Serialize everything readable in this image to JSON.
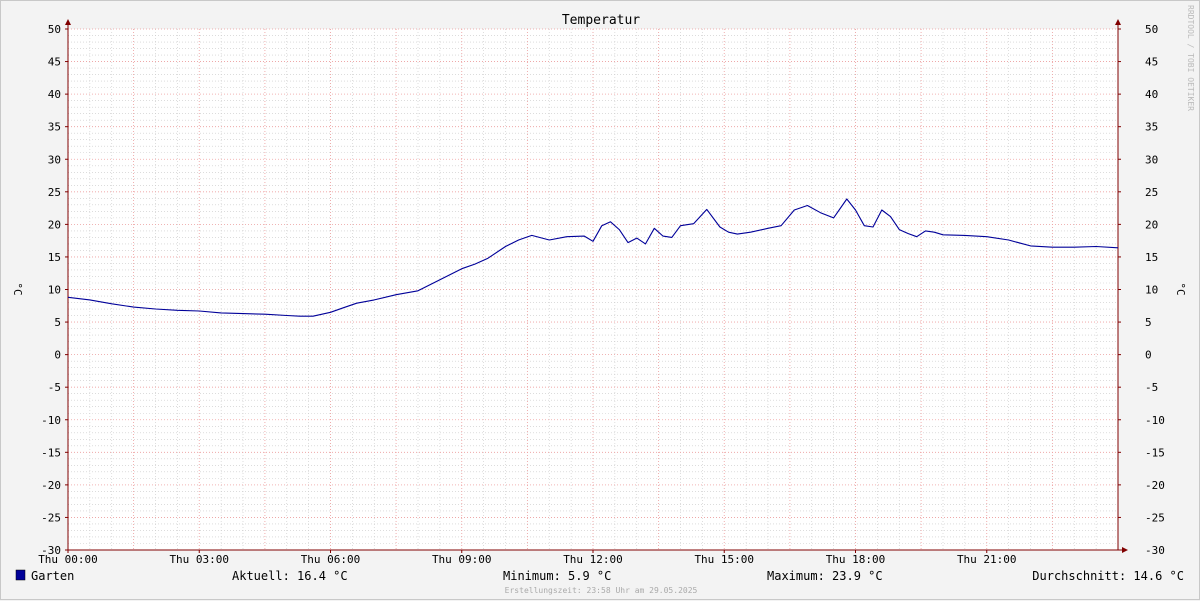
{
  "chart_data": {
    "type": "line",
    "title": "Temperatur",
    "ylabel": "°C",
    "ylim": [
      -30,
      50
    ],
    "yticks": [
      50,
      45,
      40,
      35,
      30,
      25,
      20,
      15,
      10,
      5,
      0,
      -5,
      -10,
      -15,
      -20,
      -25,
      -30
    ],
    "ytick_labels": [
      "50",
      "45",
      "40",
      "35",
      "30",
      "25",
      "20",
      "15",
      "10",
      "5",
      "0",
      "-5",
      "-10",
      "-15",
      "-20",
      "-25",
      "-30"
    ],
    "xlim": [
      0,
      24
    ],
    "xticks": [
      0,
      3,
      6,
      9,
      12,
      15,
      18,
      21
    ],
    "xtick_labels": [
      "Thu 00:00",
      "Thu 03:00",
      "Thu 06:00",
      "Thu 09:00",
      "Thu 12:00",
      "Thu 15:00",
      "Thu 18:00",
      "Thu 21:00"
    ],
    "grid": true,
    "legend_position": "bottom-left",
    "series": [
      {
        "name": "Garten",
        "color": "#000099",
        "x": [
          0,
          0.5,
          1,
          1.5,
          2,
          2.5,
          3,
          3.5,
          4,
          4.5,
          5,
          5.3,
          5.6,
          6,
          6.3,
          6.6,
          7,
          7.5,
          8,
          8.5,
          9,
          9.3,
          9.6,
          10,
          10.3,
          10.6,
          11,
          11.4,
          11.8,
          12.0,
          12.2,
          12.4,
          12.6,
          12.8,
          13.0,
          13.2,
          13.4,
          13.6,
          13.8,
          14.0,
          14.3,
          14.6,
          14.9,
          15.1,
          15.3,
          15.6,
          16.0,
          16.3,
          16.6,
          16.9,
          17.2,
          17.5,
          17.8,
          18.0,
          18.2,
          18.4,
          18.6,
          18.8,
          19.0,
          19.2,
          19.4,
          19.6,
          19.8,
          20.0,
          20.5,
          21.0,
          21.5,
          22.0,
          22.5,
          23.0,
          23.5,
          24.0
        ],
        "y": [
          8.8,
          8.4,
          7.8,
          7.3,
          7.0,
          6.8,
          6.7,
          6.4,
          6.3,
          6.2,
          6.0,
          5.9,
          5.9,
          6.5,
          7.2,
          7.9,
          8.4,
          9.2,
          9.8,
          11.5,
          13.2,
          13.9,
          14.8,
          16.6,
          17.6,
          18.3,
          17.6,
          18.1,
          18.2,
          17.4,
          19.8,
          20.4,
          19.2,
          17.2,
          17.9,
          17.0,
          19.4,
          18.2,
          18.0,
          19.8,
          20.1,
          22.3,
          19.6,
          18.8,
          18.5,
          18.8,
          19.4,
          19.8,
          22.2,
          22.9,
          21.8,
          21.0,
          23.9,
          22.2,
          19.8,
          19.6,
          22.2,
          21.2,
          19.2,
          18.6,
          18.1,
          19.0,
          18.8,
          18.4,
          18.3,
          18.1,
          17.6,
          16.7,
          16.5,
          16.5,
          16.6,
          16.4
        ]
      }
    ],
    "stats": {
      "current": "Aktuell: 16.4 °C",
      "minimum": "Minimum: 5.9 °C",
      "maximum": "Maximum: 23.9 °C",
      "average": "Durchschnitt: 14.6 °C"
    },
    "footer": "Erstellungszeit: 23:58 Uhr am 29.05.2025",
    "watermark": "RRDTOOL / TOBI OETIKER"
  },
  "colors": {
    "background": "#f3f3f3",
    "plot_background": "#ffffff",
    "major_grid": "#f0a0a0",
    "minor_grid": "#c8c8c8",
    "axis": "#800000",
    "line": "#000099"
  }
}
